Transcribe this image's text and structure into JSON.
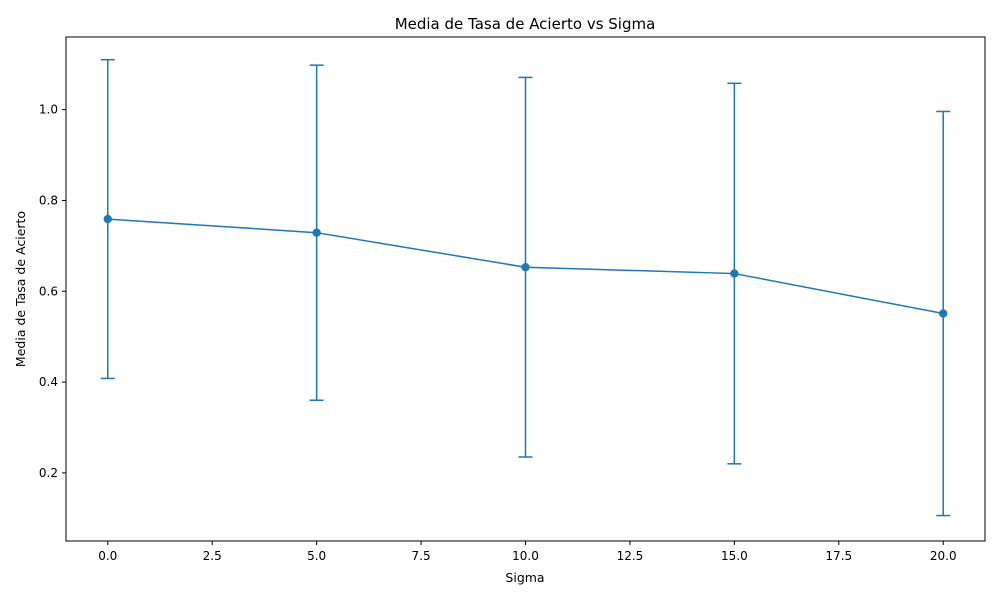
{
  "chart_data": {
    "type": "line",
    "title": "Media de Tasa de Acierto vs Sigma",
    "xlabel": "Sigma",
    "ylabel": "Media de Tasa de Acierto",
    "xlim": [
      -1.0,
      21.0
    ],
    "ylim": [
      0.05,
      1.16
    ],
    "grid": false,
    "x_ticks": [
      0.0,
      2.5,
      5.0,
      7.5,
      10.0,
      12.5,
      15.0,
      17.5,
      20.0
    ],
    "x_tick_labels": [
      "0.0",
      "2.5",
      "5.0",
      "7.5",
      "10.0",
      "12.5",
      "15.0",
      "17.5",
      "20.0"
    ],
    "y_ticks": [
      0.2,
      0.4,
      0.6,
      0.8,
      1.0
    ],
    "y_tick_labels": [
      "0.2",
      "0.4",
      "0.6",
      "0.8",
      "1.0"
    ],
    "color": "#1f77b4",
    "series": [
      {
        "x": [
          0,
          5,
          10,
          15,
          20
        ],
        "values": [
          0.759,
          0.729,
          0.653,
          0.639,
          0.551
        ],
        "error_lower": [
          0.408,
          0.36,
          0.235,
          0.22,
          0.106
        ],
        "error_upper": [
          1.11,
          1.098,
          1.071,
          1.058,
          0.996
        ]
      }
    ]
  }
}
